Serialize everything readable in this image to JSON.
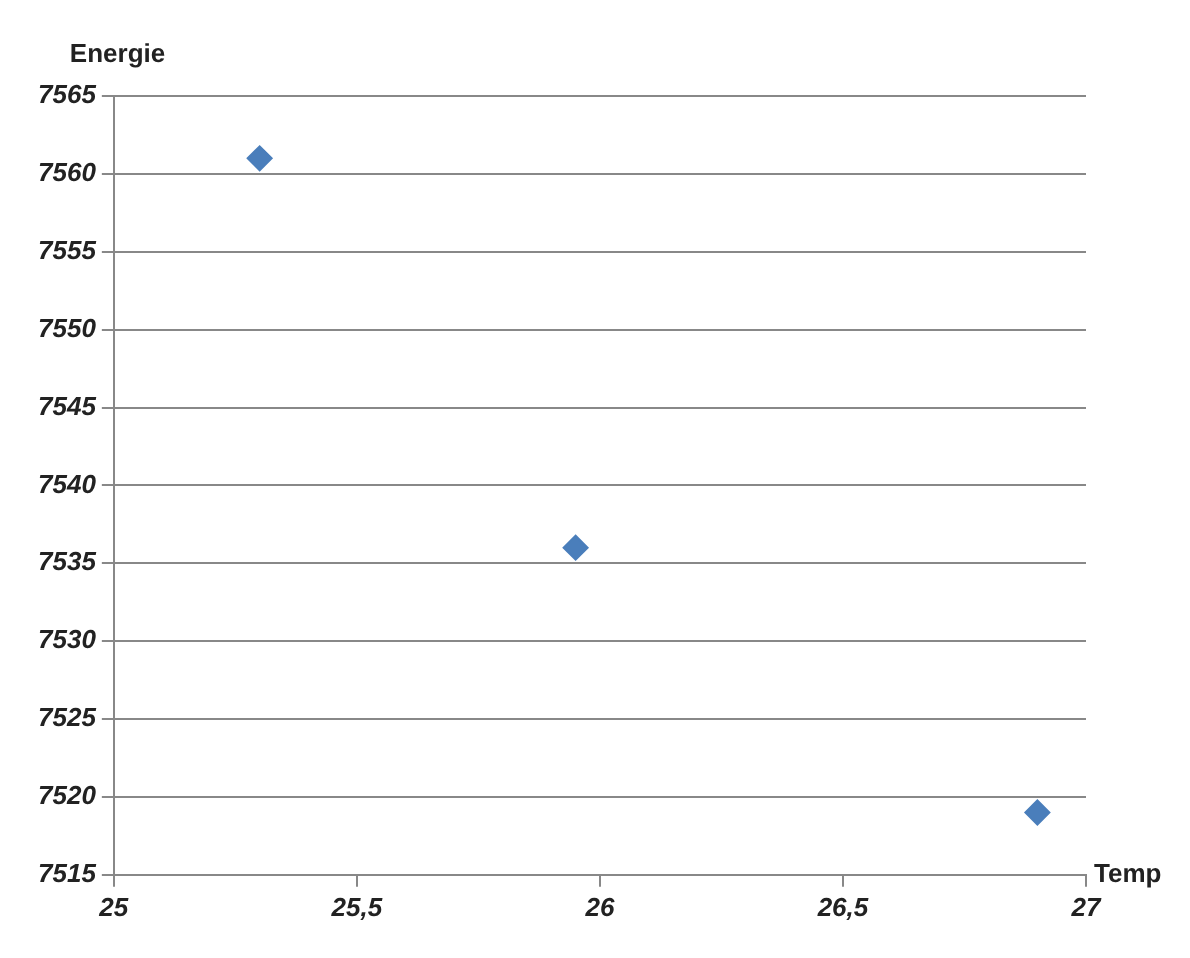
{
  "chart_data": {
    "type": "scatter",
    "xlabel": "Temp",
    "ylabel": "Energie",
    "series": [
      {
        "color": "#4a7ebb",
        "x": [
          25.3,
          25.95,
          26.9
        ],
        "values": [
          7561,
          7536,
          7519
        ]
      }
    ],
    "xlim": [
      25,
      27
    ],
    "xticks": [
      25,
      {
        "value": 25.5,
        "label": "25,5"
      },
      26,
      {
        "value": 26.5,
        "label": "26,5"
      },
      27
    ],
    "ylim": [
      7515,
      7565
    ],
    "yticks": [
      7515,
      7520,
      7525,
      7530,
      7535,
      7540,
      7545,
      7550,
      7555,
      7560,
      7565
    ],
    "grid": "y",
    "marker": "diamond",
    "legend": false
  }
}
